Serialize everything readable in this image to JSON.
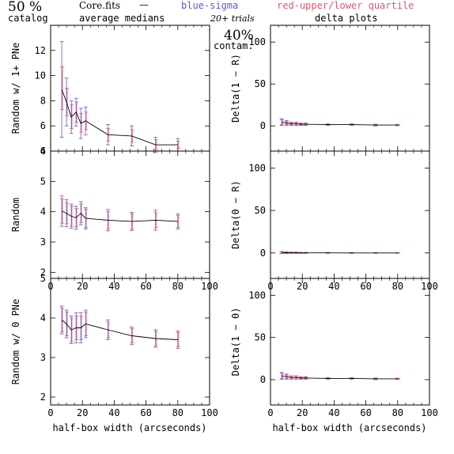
{
  "header": {
    "pct_top": "50 %",
    "pct_sub": "catalog",
    "file": "Core.fits",
    "dash": "—",
    "sub": "average medians",
    "blue_label": "blue-sigma",
    "red_label": "red-upper/lower quartile",
    "trials": "20+ trials",
    "contam_pct": "40%",
    "contam": "contam.",
    "delta": "delta plots",
    "xlabel_left": "half-box width (arcseconds)",
    "xlabel_right": "half-box width (arcseconds)"
  },
  "colors": {
    "line": "#000000",
    "sigma": "#5b5bd6",
    "quartile": "#e8556b",
    "frame": "#000000"
  },
  "chart_data": [
    {
      "type": "line",
      "id": "left-top",
      "ylabel": "Random w/ 1+ PNe",
      "xlim": [
        0,
        100
      ],
      "ylim": [
        4,
        14
      ],
      "x_ticks": [
        0,
        20,
        40,
        60,
        80,
        100
      ],
      "y_ticks": [
        4,
        6,
        8,
        10,
        12
      ],
      "show_x_labels": false,
      "show_y_labels": true,
      "x": [
        7,
        10,
        13,
        16,
        19,
        22,
        36,
        51,
        66,
        80
      ],
      "y": [
        8.9,
        7.9,
        6.7,
        7.1,
        6.2,
        6.4,
        5.3,
        5.2,
        4.5,
        4.5
      ],
      "sigma": [
        3.8,
        1.9,
        1.3,
        1.1,
        1.2,
        1.1,
        0.8,
        0.8,
        0.6,
        0.5
      ],
      "q_lo": [
        1.6,
        1.1,
        0.9,
        0.8,
        0.7,
        0.7,
        0.5,
        0.5,
        0.4,
        0.3
      ],
      "q_hi": [
        1.8,
        1.1,
        1.0,
        0.8,
        0.8,
        0.7,
        0.5,
        0.5,
        0.4,
        0.3
      ]
    },
    {
      "type": "line",
      "id": "right-top",
      "ylabel": "Delta(1 − R)",
      "xlim": [
        0,
        100
      ],
      "ylim": [
        -30,
        120
      ],
      "x_ticks": [
        0,
        20,
        40,
        60,
        80,
        100
      ],
      "y_ticks": [
        0,
        50,
        100
      ],
      "show_x_labels": false,
      "show_y_labels": true,
      "x": [
        7,
        10,
        13,
        16,
        19,
        22,
        36,
        51,
        66,
        80
      ],
      "y": [
        4.5,
        3.5,
        2.5,
        2.5,
        2,
        2,
        1.5,
        1.5,
        1,
        1
      ],
      "sigma": [
        4,
        3,
        2,
        2,
        1.5,
        1.5,
        1,
        1,
        1,
        0.8
      ],
      "q_lo": [
        3,
        2,
        1.5,
        1.5,
        1,
        1,
        0.8,
        0.8,
        0.6,
        0.5
      ],
      "q_hi": [
        3,
        2,
        1.5,
        1.5,
        1,
        1,
        0.8,
        0.8,
        0.6,
        0.5
      ]
    },
    {
      "type": "line",
      "id": "left-mid",
      "ylabel": "Random",
      "xlim": [
        0,
        100
      ],
      "ylim": [
        1.8,
        6
      ],
      "x_ticks": [
        0,
        20,
        40,
        60,
        80,
        100
      ],
      "y_ticks": [
        2,
        3,
        4,
        5,
        6
      ],
      "show_x_labels": true,
      "show_y_labels": true,
      "x": [
        7,
        10,
        13,
        16,
        19,
        22,
        36,
        51,
        66,
        80
      ],
      "y": [
        4.02,
        3.95,
        3.85,
        3.8,
        3.95,
        3.78,
        3.72,
        3.68,
        3.72,
        3.68
      ],
      "sigma": [
        0.5,
        0.45,
        0.4,
        0.38,
        0.38,
        0.35,
        0.35,
        0.3,
        0.33,
        0.25
      ],
      "q_lo": [
        0.4,
        0.35,
        0.33,
        0.3,
        0.3,
        0.3,
        0.28,
        0.25,
        0.25,
        0.2
      ],
      "q_hi": [
        0.4,
        0.35,
        0.33,
        0.3,
        0.3,
        0.3,
        0.28,
        0.25,
        0.25,
        0.2
      ]
    },
    {
      "type": "line",
      "id": "right-mid",
      "ylabel": "Delta(0 − R)",
      "xlim": [
        0,
        100
      ],
      "ylim": [
        -30,
        120
      ],
      "x_ticks": [
        0,
        20,
        40,
        60,
        80,
        100
      ],
      "y_ticks": [
        0,
        50,
        100
      ],
      "show_x_labels": true,
      "show_y_labels": true,
      "x": [
        7,
        10,
        13,
        16,
        19,
        22,
        36,
        51,
        66,
        80
      ],
      "y": [
        0.5,
        0.3,
        0.2,
        0.2,
        0.1,
        0.1,
        0.1,
        0,
        0,
        0
      ],
      "sigma": [
        1.2,
        1,
        0.8,
        0.8,
        0.6,
        0.6,
        0.5,
        0.5,
        0.4,
        0.4
      ],
      "q_lo": [
        0.8,
        0.6,
        0.5,
        0.5,
        0.4,
        0.4,
        0.3,
        0.3,
        0.3,
        0.3
      ],
      "q_hi": [
        0.8,
        0.6,
        0.5,
        0.5,
        0.4,
        0.4,
        0.3,
        0.3,
        0.3,
        0.3
      ]
    },
    {
      "type": "line",
      "id": "left-bot",
      "ylabel": "Random w/ 0 PNe",
      "xlim": [
        0,
        100
      ],
      "ylim": [
        1.8,
        5
      ],
      "x_ticks": [
        0,
        20,
        40,
        60,
        80,
        100
      ],
      "y_ticks": [
        2,
        3,
        4,
        5
      ],
      "show_x_labels": true,
      "show_y_labels": true,
      "x": [
        7,
        10,
        13,
        16,
        19,
        22,
        36,
        51,
        66,
        80
      ],
      "y": [
        3.95,
        3.85,
        3.7,
        3.75,
        3.75,
        3.85,
        3.7,
        3.55,
        3.48,
        3.45
      ],
      "sigma": [
        0.35,
        0.35,
        0.35,
        0.38,
        0.38,
        0.35,
        0.25,
        0.22,
        0.22,
        0.22
      ],
      "q_lo": [
        0.3,
        0.3,
        0.3,
        0.3,
        0.3,
        0.3,
        0.2,
        0.18,
        0.18,
        0.18
      ],
      "q_hi": [
        0.3,
        0.3,
        0.3,
        0.3,
        0.3,
        0.3,
        0.2,
        0.18,
        0.18,
        0.18
      ]
    },
    {
      "type": "line",
      "id": "right-bot",
      "ylabel": "Delta(1 − 0)",
      "xlim": [
        0,
        100
      ],
      "ylim": [
        -30,
        120
      ],
      "x_ticks": [
        0,
        20,
        40,
        60,
        80,
        100
      ],
      "y_ticks": [
        0,
        50,
        100
      ],
      "show_x_labels": true,
      "show_y_labels": true,
      "x": [
        7,
        10,
        13,
        16,
        19,
        22,
        36,
        51,
        66,
        80
      ],
      "y": [
        4.5,
        3.5,
        2.5,
        2.5,
        2,
        2,
        1.5,
        1.5,
        1,
        1
      ],
      "sigma": [
        4,
        3,
        2,
        2,
        1.5,
        1.5,
        1,
        1,
        1,
        0.8
      ],
      "q_lo": [
        3,
        2,
        1.5,
        1.5,
        1,
        1,
        0.8,
        0.8,
        0.6,
        0.5
      ],
      "q_hi": [
        3,
        2,
        1.5,
        1.5,
        1,
        1,
        0.8,
        0.8,
        0.6,
        0.5
      ]
    }
  ]
}
